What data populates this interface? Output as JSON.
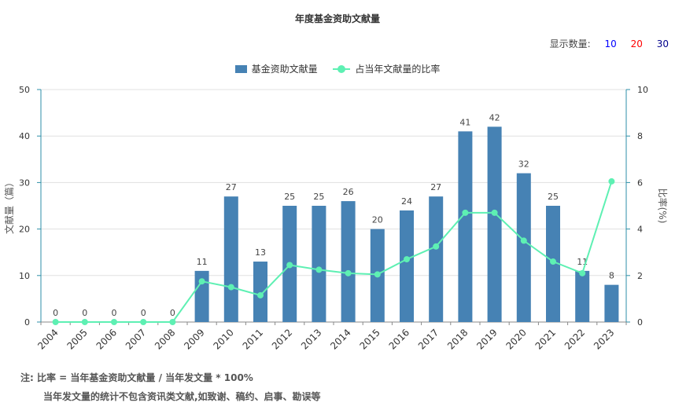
{
  "header": {
    "title": "年度基金资助文献量"
  },
  "display_count": {
    "label": "显示数量:",
    "options": [
      {
        "label": "10",
        "color": "#0000ff"
      },
      {
        "label": "20",
        "color": "#ff0000"
      },
      {
        "label": "30",
        "color": "#00008b"
      }
    ]
  },
  "legend": {
    "bar_label": "基金资助文献量",
    "line_label": "占当年文献量的比率"
  },
  "colors": {
    "bar": "#4682b4",
    "line": "#5ef0b3",
    "right_axis": "#2e8fa8"
  },
  "notes": {
    "line1": "注:  比率 = 当年基金资助文献量 / 当年发文量 * 100%",
    "line2": "当年发文量的统计不包含资讯类文献,如致谢、稿约、启事、勘误等"
  },
  "chart_data": {
    "type": "bar",
    "title": "年度基金资助文献量",
    "categories": [
      "2004",
      "2005",
      "2006",
      "2007",
      "2008",
      "2009",
      "2010",
      "2011",
      "2012",
      "2013",
      "2014",
      "2015",
      "2016",
      "2017",
      "2018",
      "2019",
      "2020",
      "2021",
      "2022",
      "2023"
    ],
    "series": [
      {
        "name": "基金资助文献量",
        "type": "bar",
        "axis": "left",
        "values": [
          0,
          0,
          0,
          0,
          0,
          11,
          27,
          13,
          25,
          25,
          26,
          20,
          24,
          27,
          41,
          42,
          32,
          25,
          11,
          8
        ]
      },
      {
        "name": "占当年文献量的比率",
        "type": "line",
        "axis": "right",
        "values": [
          0,
          0,
          0,
          0,
          0,
          1.75,
          1.5,
          1.15,
          2.45,
          2.25,
          2.1,
          2.05,
          2.7,
          3.25,
          4.7,
          4.7,
          3.5,
          2.6,
          2.1,
          6.05
        ]
      }
    ],
    "ylabel": "文献量（篇）",
    "ylabel_right": "比率(%)",
    "ylim": [
      0,
      50
    ],
    "ylim_right": [
      0,
      10
    ],
    "yticks": [
      0,
      10,
      20,
      30,
      40,
      50
    ],
    "yticks_right": [
      0,
      2,
      4,
      6,
      8,
      10
    ],
    "grid": true,
    "legend_position": "top"
  }
}
